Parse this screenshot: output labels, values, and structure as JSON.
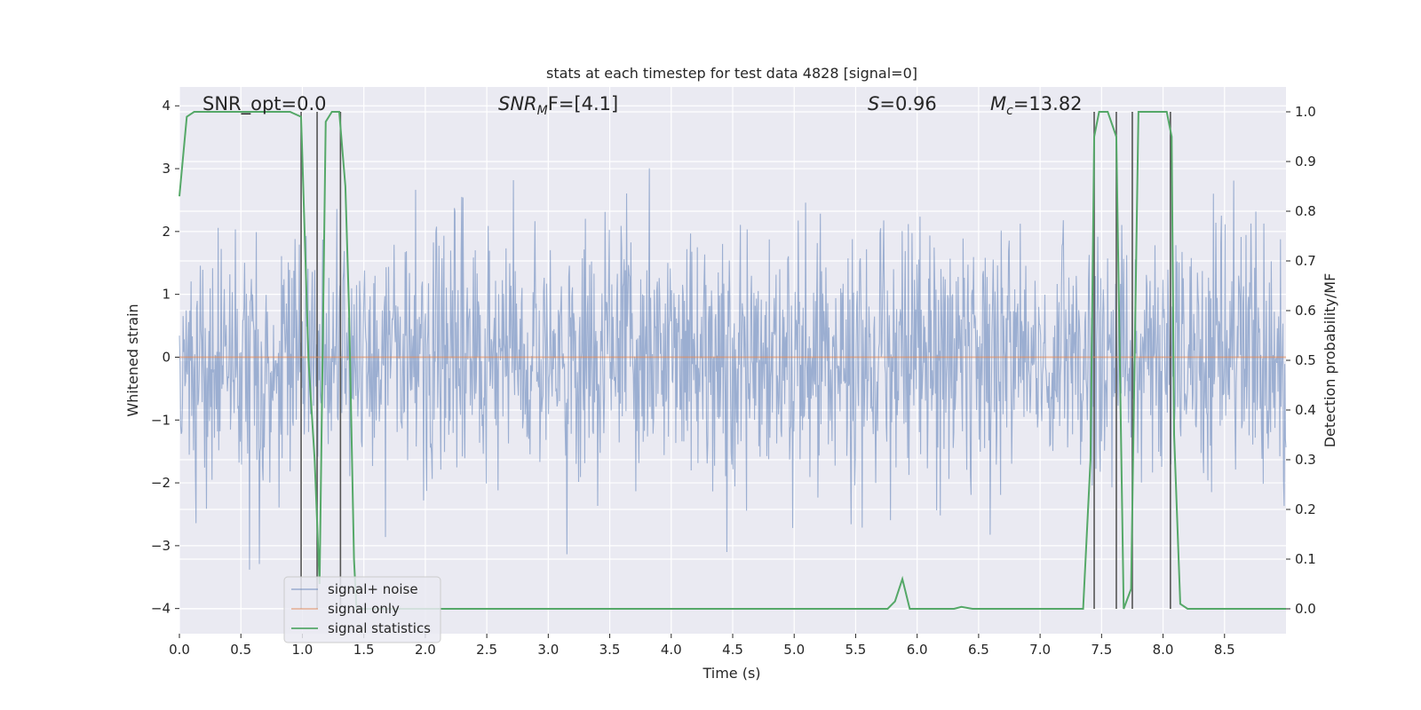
{
  "chart_data": {
    "type": "line",
    "title": "stats at each timestep for test data 4828 [signal=0]",
    "xlabel": "Time (s)",
    "ylabel": "Whitened strain",
    "y2label": "Detection probability/MF",
    "xlim": [
      0.0,
      9.0
    ],
    "ylim": [
      -4.4,
      4.3
    ],
    "y2lim": [
      -0.05,
      1.05
    ],
    "x_ticks": [
      "0.0",
      "0.5",
      "1.0",
      "1.5",
      "2.0",
      "2.5",
      "3.0",
      "3.5",
      "4.0",
      "4.5",
      "5.0",
      "5.5",
      "6.0",
      "6.5",
      "7.0",
      "7.5",
      "8.0",
      "8.5"
    ],
    "y_ticks": [
      "4",
      "3",
      "2",
      "1",
      "0",
      "−1",
      "−2",
      "−3",
      "−4"
    ],
    "y2_ticks": [
      "1.0",
      "0.9",
      "0.8",
      "0.7",
      "0.6",
      "0.5",
      "0.4",
      "0.3",
      "0.2",
      "0.1",
      "0.0"
    ],
    "annotations": {
      "snr_opt": "SNR_opt=0.0",
      "snr_mf_main": "SNR",
      "snr_mf_sub": "M",
      "snr_mf_tail": "F=[4.1]",
      "s_main": "S",
      "s_tail": "=0.96",
      "mc_main": "M",
      "mc_sub": "c",
      "mc_tail": "=13.82"
    },
    "legend": {
      "position": "lower-left",
      "entries": [
        "signal+ noise",
        "signal only",
        "signal statistics"
      ]
    },
    "colors": {
      "noise": "#4c72b0",
      "signal": "#dd8452",
      "statistics": "#55a868",
      "markers": "#555555",
      "background": "#eaeaf2",
      "grid": "#ffffff"
    },
    "series": [
      {
        "name": "signal+ noise",
        "description_values": "noise, approx. zero-mean, std ~1, excursions up to about ±3.9"
      },
      {
        "name": "signal only",
        "x": [
          0.0,
          9.0
        ],
        "y": [
          0.0,
          0.0
        ]
      },
      {
        "name": "signal statistics",
        "axis": "right",
        "x": [
          0.0,
          0.06,
          0.12,
          0.2,
          0.5,
          0.9,
          0.99,
          1.05,
          1.1,
          1.14,
          1.19,
          1.24,
          1.3,
          1.35,
          1.38,
          1.42,
          1.44,
          2.0,
          2.5,
          3.0,
          4.0,
          5.0,
          5.5,
          5.76,
          5.82,
          5.88,
          5.94,
          6.0,
          6.1,
          6.3,
          6.36,
          6.45,
          6.6,
          7.0,
          7.35,
          7.41,
          7.44,
          7.48,
          7.55,
          7.62,
          7.68,
          7.74,
          7.8,
          7.87,
          8.03,
          8.07,
          8.09,
          8.14,
          8.2,
          8.6,
          9.0
        ],
        "y": [
          0.83,
          0.99,
          1.0,
          1.0,
          1.0,
          1.0,
          0.99,
          0.5,
          0.3,
          0.05,
          0.98,
          1.0,
          1.0,
          0.85,
          0.6,
          0.1,
          0.0,
          0.0,
          0.0,
          0.0,
          0.0,
          0.0,
          0.0,
          0.0,
          0.015,
          0.06,
          0.0,
          0.0,
          0.0,
          0.0,
          0.004,
          0.0,
          0.0,
          0.0,
          0.0,
          0.3,
          0.95,
          1.0,
          1.0,
          0.95,
          0.0,
          0.04,
          1.0,
          1.0,
          1.0,
          0.95,
          0.35,
          0.01,
          0.0,
          0.0,
          0.0
        ]
      },
      {
        "name": "",
        "kind": "vertical-markers",
        "x": [
          0.99,
          1.12,
          1.31,
          7.44,
          7.62,
          7.75,
          8.06
        ]
      }
    ]
  }
}
